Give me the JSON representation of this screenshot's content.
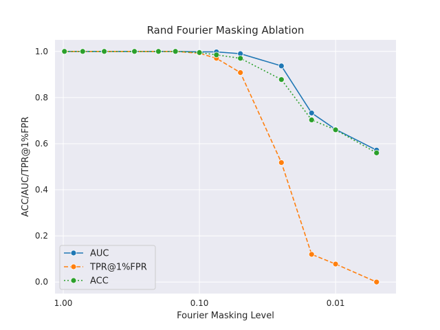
{
  "chart_data": {
    "type": "line",
    "title": "Rand Fourier Masking Ablation",
    "xlabel": "Fourier Masking Level",
    "ylabel": "ACC/AUC/TPR@1%FPR",
    "x_scale": "log-reversed",
    "xlim": [
      1.15,
      0.0036
    ],
    "ylim": [
      -0.05,
      1.05
    ],
    "x_ticks": [
      1.0,
      0.1,
      0.01
    ],
    "x_tick_labels": [
      "1.00",
      "0.10",
      "0.01"
    ],
    "y_ticks": [
      0.0,
      0.2,
      0.4,
      0.6,
      0.8,
      1.0
    ],
    "y_tick_labels": [
      "0.0",
      "0.2",
      "0.4",
      "0.6",
      "0.8",
      "1.0"
    ],
    "grid": true,
    "legend_position": "lower-left",
    "x": [
      0.98,
      0.72,
      0.5,
      0.3,
      0.2,
      0.15,
      0.1,
      0.075,
      0.05,
      0.025,
      0.015,
      0.01,
      0.005
    ],
    "series": [
      {
        "name": "AUC",
        "color": "#1f77b4",
        "dash": "solid",
        "values": [
          1.0,
          1.0,
          1.0,
          1.0,
          1.0,
          1.0,
          0.998,
          0.998,
          0.99,
          0.937,
          0.733,
          0.662,
          0.572
        ]
      },
      {
        "name": "TPR@1%FPR",
        "color": "#ff7f0e",
        "dash": "dashed",
        "values": [
          1.0,
          1.0,
          1.0,
          1.0,
          1.0,
          1.0,
          0.992,
          0.97,
          0.908,
          0.518,
          0.12,
          0.078,
          0.0
        ]
      },
      {
        "name": "ACC",
        "color": "#2ca02c",
        "dash": "dotted",
        "values": [
          1.0,
          1.0,
          1.0,
          1.0,
          1.0,
          1.0,
          0.995,
          0.985,
          0.97,
          0.878,
          0.703,
          0.66,
          0.56
        ]
      }
    ]
  }
}
